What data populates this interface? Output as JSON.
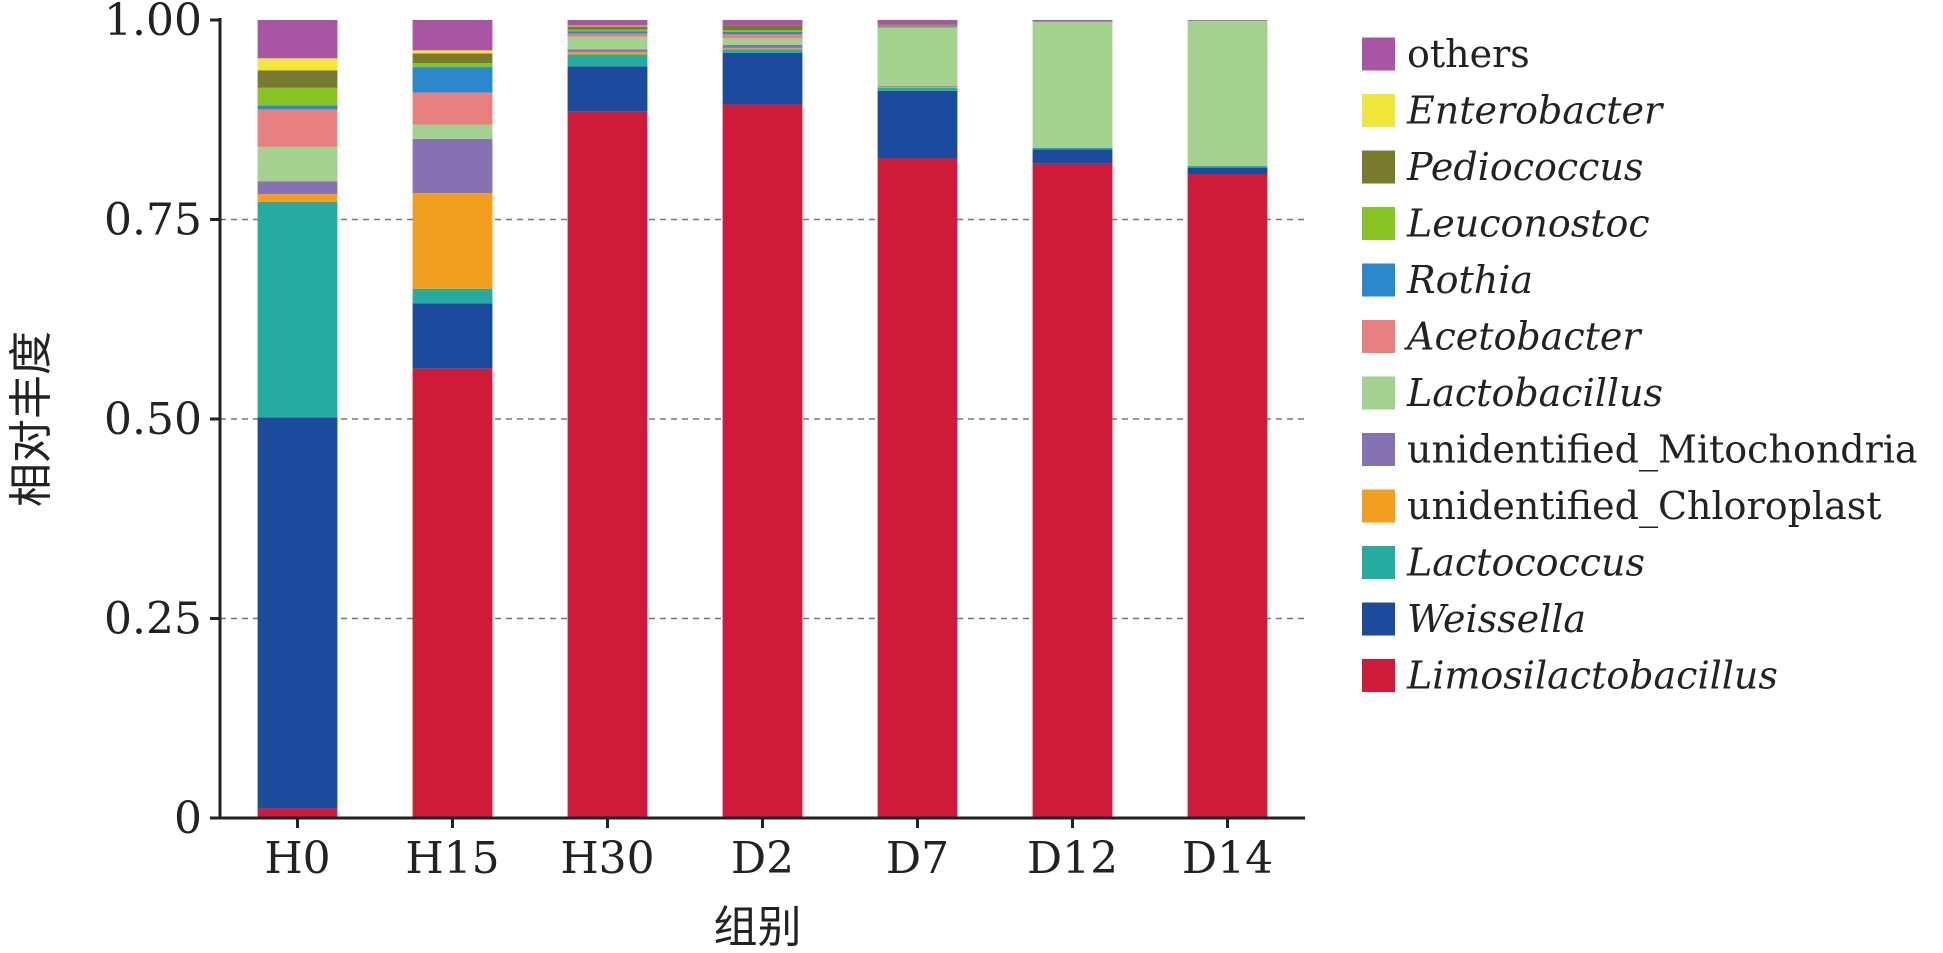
{
  "chart_data": {
    "type": "bar",
    "stacked": true,
    "title": "",
    "xlabel": "组别",
    "ylabel": "相对丰度",
    "ylim": [
      0,
      1
    ],
    "yticks": [
      "0",
      "0.25",
      "0.50",
      "0.75",
      "1.00"
    ],
    "ytick_values": [
      0,
      0.25,
      0.5,
      0.75,
      1.0
    ],
    "grid": "horizontal dashed",
    "legend_position": "right",
    "categories": [
      "H0",
      "H15",
      "H30",
      "D2",
      "D7",
      "D12",
      "D14"
    ],
    "series": [
      {
        "name": "Limosilactobacillus",
        "italic": true,
        "color": "#cf1b3a",
        "values": [
          0.012,
          0.563,
          0.885,
          0.894,
          0.828,
          0.82,
          0.807
        ]
      },
      {
        "name": "Weissella",
        "italic": true,
        "color": "#1c4a9c",
        "values": [
          0.49,
          0.082,
          0.057,
          0.065,
          0.085,
          0.018,
          0.008
        ]
      },
      {
        "name": "Lactococcus",
        "italic": true,
        "color": "#26aba0",
        "values": [
          0.27,
          0.018,
          0.015,
          0.004,
          0.004,
          0.002,
          0.002
        ]
      },
      {
        "name": "unidentified_Chloroplast",
        "italic": false,
        "color": "#f29f1f",
        "values": [
          0.01,
          0.12,
          0.003,
          0.002,
          0.001,
          0.0,
          0.0
        ]
      },
      {
        "name": "unidentified_Mitochondria",
        "italic": false,
        "color": "#8672b2",
        "values": [
          0.016,
          0.068,
          0.003,
          0.004,
          0.001,
          0.0,
          0.0
        ]
      },
      {
        "name": "Lactobacillus",
        "italic": true,
        "color": "#a3d190",
        "values": [
          0.043,
          0.018,
          0.016,
          0.008,
          0.073,
          0.158,
          0.182
        ]
      },
      {
        "name": "Acetobacter",
        "italic": true,
        "color": "#e88080",
        "values": [
          0.047,
          0.04,
          0.004,
          0.005,
          0.001,
          0.0,
          0.0
        ]
      },
      {
        "name": "Rothia",
        "italic": true,
        "color": "#2b88cc",
        "values": [
          0.005,
          0.032,
          0.003,
          0.003,
          0.001,
          0.0,
          0.0
        ]
      },
      {
        "name": "Leuconostoc",
        "italic": true,
        "color": "#88c326",
        "values": [
          0.022,
          0.005,
          0.002,
          0.002,
          0.001,
          0.0,
          0.0
        ]
      },
      {
        "name": "Pediococcus",
        "italic": true,
        "color": "#7a7a2e",
        "values": [
          0.022,
          0.012,
          0.004,
          0.006,
          0.001,
          0.0,
          0.0
        ]
      },
      {
        "name": "Enterobacter",
        "italic": true,
        "color": "#f0e63c",
        "values": [
          0.015,
          0.004,
          0.001,
          0.0,
          0.0,
          0.0,
          0.0
        ]
      },
      {
        "name": "others",
        "italic": false,
        "color": "#a855a3",
        "values": [
          0.048,
          0.038,
          0.007,
          0.007,
          0.006,
          0.002,
          0.001
        ]
      }
    ]
  }
}
